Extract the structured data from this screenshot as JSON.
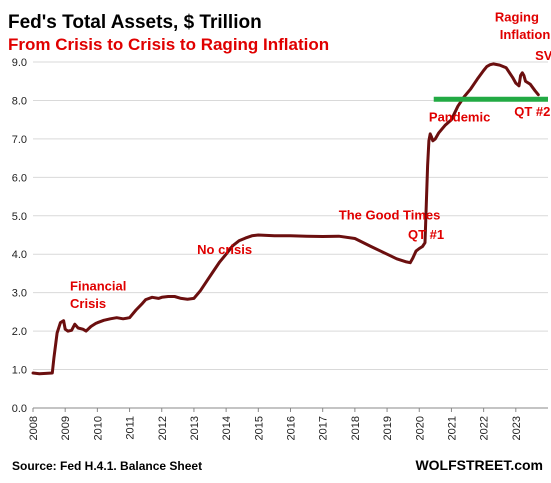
{
  "chart_data": {
    "type": "line",
    "title": "Fed's Total Assets, $ Trillion",
    "subtitle": "From Crisis to Crisis to Raging Inflation",
    "source": "Source: Fed H.4.1. Balance Sheet",
    "brand": "WOLFSTREET.com",
    "xlim": [
      2008,
      2024
    ],
    "ylim": [
      0,
      9
    ],
    "x_ticks": [
      "2008",
      "2009",
      "2010",
      "2011",
      "2012",
      "2013",
      "2014",
      "2015",
      "2016",
      "2017",
      "2018",
      "2019",
      "2020",
      "2021",
      "2022",
      "2023"
    ],
    "y_ticks": [
      "0.0",
      "1.0",
      "2.0",
      "3.0",
      "4.0",
      "5.0",
      "6.0",
      "7.0",
      "8.0",
      "9.0"
    ],
    "grid": true,
    "colors": {
      "line": "#6b0f0f",
      "annotation": "#e00000",
      "reference": "#22aa44",
      "grid": "#d9d9d9"
    },
    "series": [
      {
        "x": [
          2008.0,
          2008.2,
          2008.4,
          2008.6,
          2008.65,
          2008.75,
          2008.85,
          2008.95,
          2009.0,
          2009.08,
          2009.2,
          2009.3,
          2009.4,
          2009.55,
          2009.65,
          2009.8,
          2009.95,
          2010.0,
          2010.2,
          2010.4,
          2010.6,
          2010.8,
          2011.0,
          2011.2,
          2011.4,
          2011.5,
          2011.7,
          2011.9,
          2012.0,
          2012.2,
          2012.4,
          2012.6,
          2012.8,
          2013.0,
          2013.2,
          2013.4,
          2013.6,
          2013.8,
          2014.0,
          2014.2,
          2014.4,
          2014.6,
          2014.8,
          2015.0,
          2015.5,
          2016.0,
          2016.5,
          2017.0,
          2017.5,
          2018.0,
          2018.5,
          2019.0,
          2019.3,
          2019.6,
          2019.72,
          2019.8,
          2019.9,
          2020.0,
          2020.1,
          2020.18,
          2020.22,
          2020.26,
          2020.3,
          2020.34,
          2020.38,
          2020.42,
          2020.5,
          2020.6,
          2020.8,
          2021.0,
          2021.2,
          2021.4,
          2021.6,
          2021.8,
          2022.0,
          2022.1,
          2022.2,
          2022.3,
          2022.5,
          2022.7,
          2022.9,
          2023.0,
          2023.1,
          2023.15,
          2023.2,
          2023.25,
          2023.3,
          2023.45,
          2023.6,
          2023.7
        ],
        "y": [
          0.91,
          0.89,
          0.9,
          0.91,
          1.3,
          1.95,
          2.22,
          2.27,
          2.05,
          2.0,
          2.02,
          2.18,
          2.08,
          2.05,
          2.0,
          2.12,
          2.2,
          2.22,
          2.28,
          2.32,
          2.35,
          2.32,
          2.35,
          2.55,
          2.72,
          2.82,
          2.88,
          2.85,
          2.88,
          2.9,
          2.9,
          2.85,
          2.83,
          2.85,
          3.05,
          3.3,
          3.55,
          3.8,
          4.0,
          4.22,
          4.35,
          4.42,
          4.48,
          4.5,
          4.48,
          4.48,
          4.47,
          4.46,
          4.47,
          4.41,
          4.2,
          4.0,
          3.88,
          3.8,
          3.78,
          3.9,
          4.08,
          4.15,
          4.2,
          4.3,
          5.3,
          6.3,
          6.95,
          7.13,
          7.05,
          6.95,
          7.0,
          7.15,
          7.35,
          7.5,
          7.85,
          8.1,
          8.3,
          8.55,
          8.78,
          8.88,
          8.93,
          8.95,
          8.92,
          8.85,
          8.6,
          8.45,
          8.38,
          8.65,
          8.72,
          8.65,
          8.5,
          8.42,
          8.25,
          8.15
        ]
      }
    ],
    "reference_line": {
      "y": 8.03,
      "x_start": 2020.45,
      "x_end": 2024.0
    },
    "annotations": [
      {
        "text": "Financial",
        "x": 2009.15,
        "y": 3.05
      },
      {
        "text": "Crisis",
        "x": 2009.15,
        "y": 2.6
      },
      {
        "text": "No crisis",
        "x": 2013.1,
        "y": 4.0
      },
      {
        "text": "The Good Times",
        "x": 2017.5,
        "y": 4.9
      },
      {
        "text": "QT #1",
        "x": 2019.65,
        "y": 4.4
      },
      {
        "text": "Pandemic",
        "x": 2020.3,
        "y": 7.45
      },
      {
        "text": "Raging",
        "x": 2022.35,
        "y": 10.05
      },
      {
        "text": "Inflation",
        "x": 2022.5,
        "y": 9.6
      },
      {
        "text": "QT #2",
        "x": 2022.95,
        "y": 7.6
      },
      {
        "text": "SVB",
        "x": 2023.6,
        "y": 9.05
      }
    ]
  }
}
